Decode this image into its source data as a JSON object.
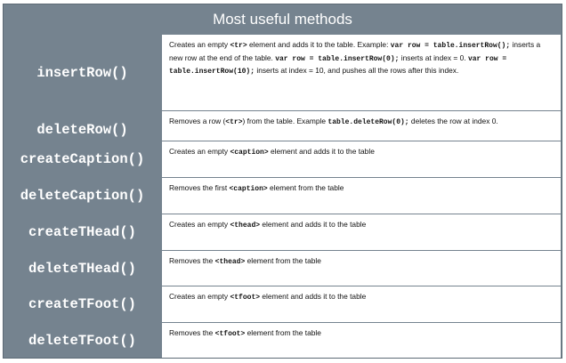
{
  "table": {
    "title": "Most useful methods",
    "rows": [
      {
        "method": "insertRow()",
        "desc": [
          {
            "t": "Creates an empty "
          },
          {
            "c": "<tr>"
          },
          {
            "t": " element and adds it to the table. Example: "
          },
          {
            "c": "var row = table.insertRow();"
          },
          {
            "t": " inserts a new row at the end of the table. "
          },
          {
            "c": "var row = table.insertRow(0);"
          },
          {
            "t": " inserts at index = 0. "
          },
          {
            "c": "var row = table.insertRow(10);"
          },
          {
            "t": " inserts at index = 10, and pushes all the rows after this index."
          }
        ]
      },
      {
        "method": "deleteRow()",
        "desc": [
          {
            "t": "Removes a row ("
          },
          {
            "c": "<tr>"
          },
          {
            "t": ") from the table. Example "
          },
          {
            "c": "table.deleteRow(0);"
          },
          {
            "t": " deletes the row at index 0."
          }
        ]
      },
      {
        "method": "createCaption()",
        "desc": [
          {
            "t": "Creates an empty "
          },
          {
            "c": "<caption>"
          },
          {
            "t": " element and adds it to the table"
          }
        ]
      },
      {
        "method": "deleteCaption()",
        "desc": [
          {
            "t": "Removes the first "
          },
          {
            "c": "<caption>"
          },
          {
            "t": " element from the table"
          }
        ]
      },
      {
        "method": "createTHead()",
        "desc": [
          {
            "t": "Creates an empty "
          },
          {
            "c": "<thead>"
          },
          {
            "t": " element and adds it to the table"
          }
        ]
      },
      {
        "method": "deleteTHead()",
        "desc": [
          {
            "t": "Removes the "
          },
          {
            "c": "<thead>"
          },
          {
            "t": " element from the table"
          }
        ]
      },
      {
        "method": "createTFoot()",
        "desc": [
          {
            "t": "Creates an empty "
          },
          {
            "c": "<tfoot>"
          },
          {
            "t": " element and adds it to the table"
          }
        ]
      },
      {
        "method": "deleteTFoot()",
        "desc": [
          {
            "t": "Removes the "
          },
          {
            "c": "<tfoot>"
          },
          {
            "t": " element from the table"
          }
        ]
      }
    ]
  }
}
